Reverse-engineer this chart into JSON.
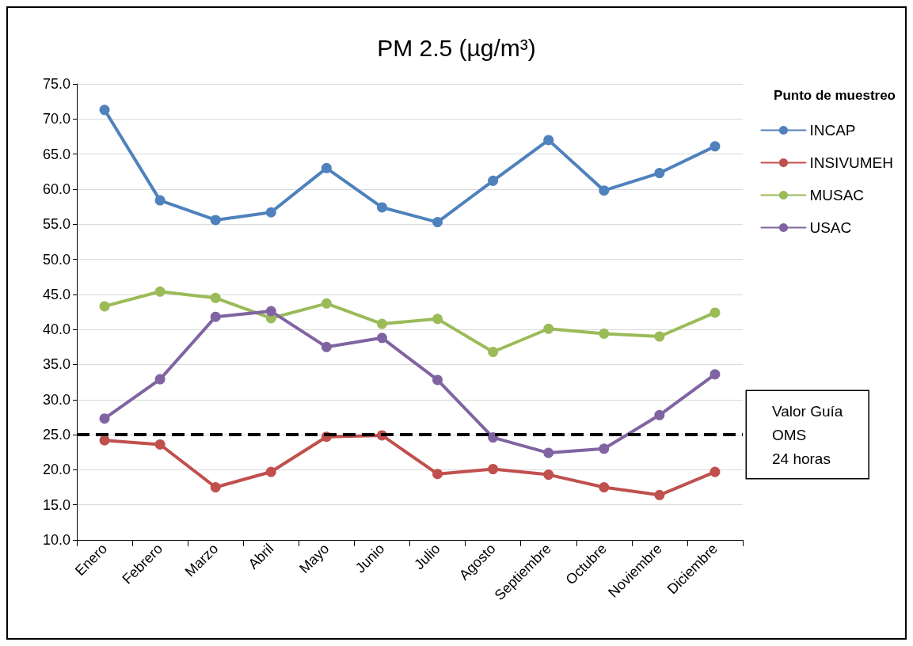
{
  "chart_data": {
    "type": "line",
    "title": "PM 2.5 (µg/m³)",
    "legend_title": "Punto de muestreo",
    "categories": [
      "Enero",
      "Febrero",
      "Marzo",
      "Abril",
      "Mayo",
      "Junio",
      "Julio",
      "Agosto",
      "Septiembre",
      "Octubre",
      "Noviembre",
      "Diciembre"
    ],
    "series": [
      {
        "name": "INCAP",
        "color": "#4f81bd",
        "values": [
          71.3,
          58.4,
          55.6,
          56.7,
          63.0,
          57.4,
          55.3,
          61.2,
          67.0,
          59.8,
          62.3,
          66.1
        ]
      },
      {
        "name": "INSIVUMEH",
        "color": "#c0504d",
        "values": [
          24.2,
          23.6,
          17.5,
          19.7,
          24.7,
          24.9,
          19.4,
          20.1,
          19.3,
          17.5,
          16.4,
          19.7
        ]
      },
      {
        "name": "MUSAC",
        "color": "#9bbb59",
        "values": [
          43.3,
          45.4,
          44.5,
          41.6,
          43.7,
          40.8,
          41.5,
          36.8,
          40.1,
          39.4,
          39.0,
          42.4
        ]
      },
      {
        "name": "USAC",
        "color": "#8064a2",
        "values": [
          27.3,
          32.9,
          41.8,
          42.6,
          37.5,
          38.8,
          32.8,
          24.6,
          22.4,
          23.0,
          27.8,
          33.6
        ]
      }
    ],
    "ylim": [
      10,
      75
    ],
    "yticks": [
      {
        "value": 10,
        "label": "10.0"
      },
      {
        "value": 15,
        "label": "15.0"
      },
      {
        "value": 20,
        "label": "20.0"
      },
      {
        "value": 25,
        "label": "25.0"
      },
      {
        "value": 30,
        "label": "30.0"
      },
      {
        "value": 35,
        "label": "35.0"
      },
      {
        "value": 40,
        "label": "40.0"
      },
      {
        "value": 45,
        "label": "45.0"
      },
      {
        "value": 50,
        "label": "50.0"
      },
      {
        "value": 55,
        "label": "55.0"
      },
      {
        "value": 60,
        "label": "60.0"
      },
      {
        "value": 65,
        "label": "65.0"
      },
      {
        "value": 70,
        "label": "70.0"
      },
      {
        "value": 75,
        "label": "75.0"
      }
    ],
    "grid": "y",
    "legend": "top right",
    "marker": "circle",
    "line_style": "solid",
    "ref_lines": [
      {
        "axis": "y",
        "value": 25,
        "label": "Valor Guía\nOMS\n24 horas",
        "color": "#000000",
        "line_style": "dashed"
      }
    ]
  }
}
